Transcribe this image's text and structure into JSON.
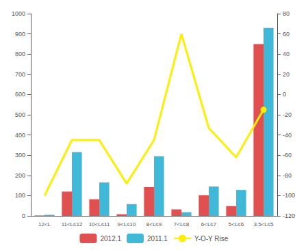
{
  "chart_data": {
    "type": "bar",
    "categories": [
      "12<L",
      "11<L≤12",
      "10<L≤11",
      "9<L≤10",
      "8<L≤9",
      "7<L≤8",
      "6<L≤7",
      "5<L≤6",
      "3.5<L≤5"
    ],
    "series": [
      {
        "name": "2012.1",
        "type": "bar",
        "color": "#e05050",
        "values": [
          2,
          120,
          82,
          8,
          142,
          32,
          102,
          48,
          850
        ]
      },
      {
        "name": "2011.1",
        "type": "bar",
        "color": "#40b8d8",
        "values": [
          5,
          315,
          165,
          58,
          295,
          18,
          145,
          128,
          930
        ]
      },
      {
        "name": "Y-O-Y Rise",
        "type": "line",
        "axis": "y2",
        "color": "#ffee00",
        "values": [
          -100,
          -45,
          -45,
          -88,
          -45,
          60,
          -33,
          -62,
          -15
        ]
      }
    ],
    "ylim": [
      0,
      1000
    ],
    "yticks": [
      0,
      100,
      200,
      300,
      400,
      500,
      600,
      700,
      800,
      900,
      1000
    ],
    "y2lim": [
      -120,
      80
    ],
    "y2ticks": [
      -120,
      -100,
      -80,
      -60,
      -40,
      -20,
      0,
      20,
      40,
      60,
      80
    ],
    "grid": false,
    "legend": "bottom"
  }
}
